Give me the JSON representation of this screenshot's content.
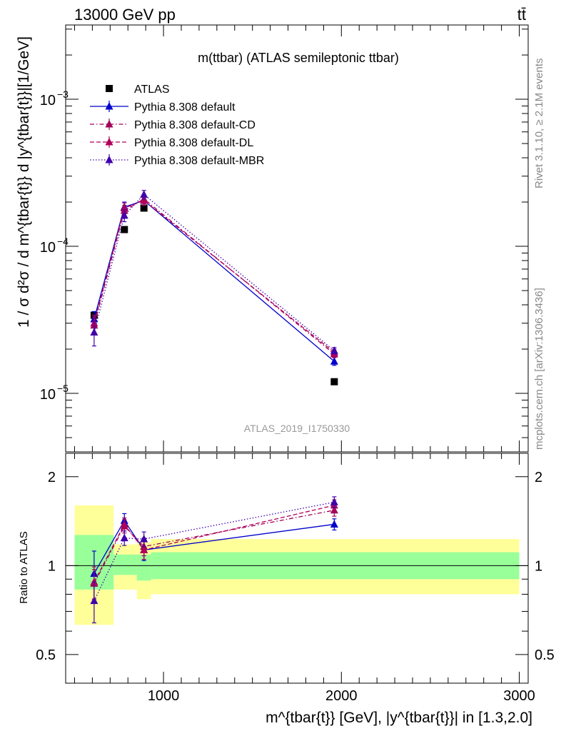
{
  "header": {
    "left": "13000 GeV pp",
    "right": "tt̄"
  },
  "side_labels": {
    "rivet": "Rivet 3.1.10, ≥ 2.1M events",
    "mcplots": "mcplots.cern.ch [arXiv:1306.3436]"
  },
  "chart_data": [
    {
      "type": "line",
      "panel": "main",
      "title": "m(ttbar) (ATLAS semileptonic ttbar)",
      "watermark": "ATLAS_2019_I1750330",
      "ylabel": "1 / σ d²σ / d m^{tbar{t}} d |y^{tbar{t}}|[1/GeV]",
      "xlabel": "m^{tbar{t}} [GeV], |y^{tbar{t}}| in [1.3,2.0]",
      "xlim": [
        450,
        3050
      ],
      "ylim": [
        4e-06,
        0.0032
      ],
      "yscale": "log",
      "y_ticks": [
        {
          "value": 1e-05,
          "base": "10",
          "exp": "−5"
        },
        {
          "value": 0.0001,
          "base": "10",
          "exp": "−4"
        },
        {
          "value": 0.001,
          "base": "10",
          "exp": "−3"
        }
      ],
      "x_ticks": [
        1000,
        2000,
        3000
      ],
      "legend_position": "top-left",
      "series": [
        {
          "name": "ATLAS",
          "color": "#000000",
          "marker": "square",
          "dash": "none",
          "x": [
            610,
            780,
            890,
            1960
          ],
          "y": [
            3.4e-05,
            0.00013,
            0.000182,
            1.2e-05
          ]
        },
        {
          "name": "Pythia 8.308 default",
          "color": "#0000cc",
          "marker": "triangle",
          "dash": "solid",
          "x": [
            610,
            780,
            890,
            1960
          ],
          "y": [
            3.2e-05,
            0.000185,
            0.000205,
            1.65e-05
          ],
          "err": [
            4e-06,
            1.5e-05,
            1.5e-05,
            1e-06
          ]
        },
        {
          "name": "Pythia 8.308 default-CD",
          "color": "#a0005a",
          "marker": "triangle",
          "dash": "dashdot",
          "x": [
            610,
            780,
            890,
            1960
          ],
          "y": [
            2.9e-05,
            0.000175,
            0.00021,
            1.85e-05
          ],
          "err": [
            4e-06,
            1.5e-05,
            1.5e-05,
            1e-06
          ]
        },
        {
          "name": "Pythia 8.308 default-DL",
          "color": "#b0005a",
          "marker": "triangle",
          "dash": "dashed",
          "x": [
            610,
            780,
            890,
            1960
          ],
          "y": [
            3e-05,
            0.000182,
            0.000205,
            1.9e-05
          ],
          "err": [
            4e-06,
            1.5e-05,
            1.5e-05,
            1e-06
          ]
        },
        {
          "name": "Pythia 8.308 default-MBR",
          "color": "#4000aa",
          "marker": "triangle",
          "dash": "dotted",
          "x": [
            610,
            780,
            890,
            1960
          ],
          "y": [
            2.6e-05,
            0.000162,
            0.000225,
            1.95e-05
          ],
          "err": [
            5e-06,
            1.5e-05,
            1.5e-05,
            1e-06
          ]
        }
      ]
    },
    {
      "type": "line",
      "panel": "ratio",
      "ylabel": "Ratio to ATLAS",
      "xlim": [
        450,
        3050
      ],
      "ylim": [
        0.4,
        2.4
      ],
      "yscale": "log",
      "y_ticks": [
        0.5,
        1,
        2
      ],
      "x_ticks": [
        1000,
        2000,
        3000
      ],
      "reference_line": 1,
      "bands": [
        {
          "x0": 500,
          "x1": 720,
          "green": [
            0.83,
            1.27
          ],
          "yellow": [
            0.63,
            1.6
          ]
        },
        {
          "x0": 720,
          "x1": 850,
          "green": [
            0.93,
            1.09
          ],
          "yellow": [
            0.83,
            1.18
          ]
        },
        {
          "x0": 850,
          "x1": 930,
          "green": [
            0.89,
            1.09
          ],
          "yellow": [
            0.77,
            1.2
          ]
        },
        {
          "x0": 930,
          "x1": 3000,
          "green": [
            0.9,
            1.11
          ],
          "yellow": [
            0.8,
            1.23
          ]
        }
      ],
      "series": [
        {
          "name": "Pythia 8.308 default",
          "color": "#0000cc",
          "marker": "triangle",
          "dash": "solid",
          "x": [
            610,
            780,
            890,
            1960
          ],
          "y": [
            0.94,
            1.42,
            1.13,
            1.38
          ],
          "err": [
            0.18,
            0.08,
            0.09,
            0.06
          ]
        },
        {
          "name": "Pythia 8.308 default-CD",
          "color": "#a0005a",
          "marker": "triangle",
          "dash": "dashdot",
          "x": [
            610,
            780,
            890,
            1960
          ],
          "y": [
            0.87,
            1.36,
            1.16,
            1.54
          ],
          "err": [
            0.1,
            0.07,
            0.08,
            0.07
          ]
        },
        {
          "name": "Pythia 8.308 default-DL",
          "color": "#b0005a",
          "marker": "triangle",
          "dash": "dashed",
          "x": [
            610,
            780,
            890,
            1960
          ],
          "y": [
            0.88,
            1.38,
            1.13,
            1.6
          ],
          "err": [
            0.11,
            0.07,
            0.08,
            0.07
          ]
        },
        {
          "name": "Pythia 8.308 default-MBR",
          "color": "#4000aa",
          "marker": "triangle",
          "dash": "dotted",
          "x": [
            610,
            780,
            890,
            1960
          ],
          "y": [
            0.76,
            1.24,
            1.23,
            1.64
          ],
          "err": [
            0.12,
            0.07,
            0.07,
            0.07
          ]
        }
      ]
    }
  ]
}
